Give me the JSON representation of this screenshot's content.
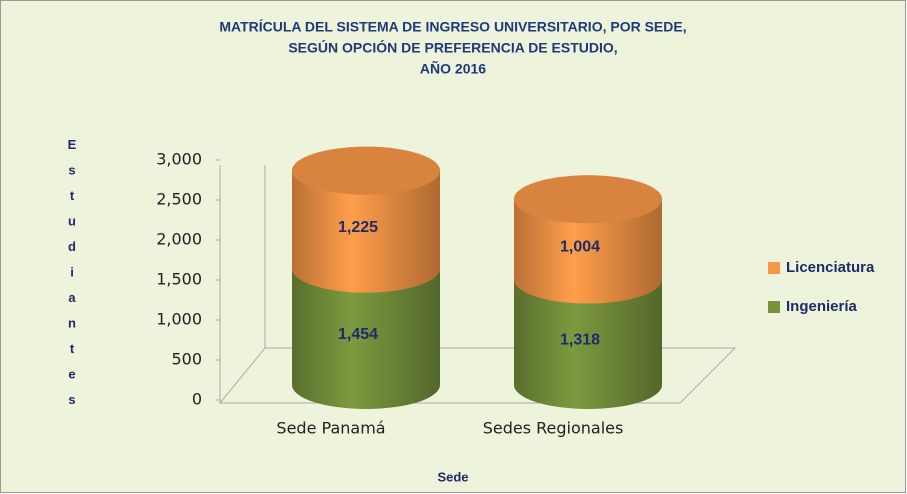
{
  "chart_data": {
    "type": "cylinder_stacked_bar",
    "title": [
      "MATRÍCULA DEL SISTEMA DE INGRESO UNIVERSITARIO, POR SEDE,",
      "SEGÚN OPCIÓN DE PREFERENCIA DE ESTUDIO,",
      "AÑO 2016"
    ],
    "x_label": "Sede",
    "y_label": "Estudiantes",
    "categories": [
      "Sede Panamá",
      "Sedes Regionales"
    ],
    "series": [
      {
        "name": "Ingeniería",
        "color": "#77933c",
        "values": [
          1454,
          1318
        ],
        "value_labels": [
          "1,454",
          "1,318"
        ]
      },
      {
        "name": "Licenciatura",
        "color": "#f79646",
        "values": [
          1225,
          1004
        ],
        "value_labels": [
          "1,225",
          "1,004"
        ]
      }
    ],
    "ylim": [
      0,
      3000
    ],
    "yticks": [
      0,
      500,
      {
        "value": 1000,
        "label": "1,000"
      },
      {
        "value": 1500,
        "label": "1,500"
      },
      {
        "value": 2000,
        "label": "2,000"
      },
      {
        "value": 2500,
        "label": "2,500"
      },
      {
        "value": 3000,
        "label": "3,000"
      }
    ],
    "legend": "right"
  }
}
